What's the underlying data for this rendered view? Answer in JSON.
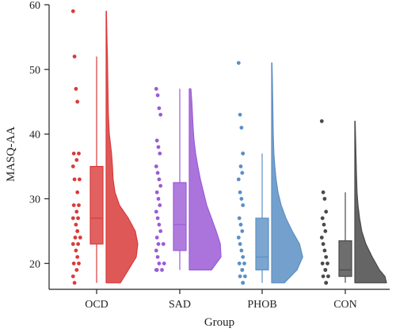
{
  "chart_data": {
    "type": "raincloud",
    "title": "",
    "xlabel": "Group",
    "ylabel": "MASQ-AA",
    "ylim": [
      16,
      60
    ],
    "yticks": [
      20,
      30,
      40,
      50,
      60
    ],
    "grid": false,
    "legend": "none",
    "categories": [
      "OCD",
      "SAD",
      "PHOB",
      "CON"
    ],
    "series": [
      {
        "name": "OCD",
        "color": "#d93a3a",
        "box": {
          "min": 17,
          "q1": 23,
          "median": 27,
          "q3": 35,
          "max": 52
        },
        "points": [
          59,
          52,
          47,
          45,
          37,
          37,
          36,
          35,
          33,
          33,
          31,
          29,
          29,
          28,
          27,
          27,
          26,
          25,
          25,
          24,
          24,
          23,
          23,
          22,
          21,
          20,
          20,
          19,
          18,
          17
        ],
        "density": [
          [
            17,
            0.45
          ],
          [
            19,
            0.7
          ],
          [
            21,
            0.95
          ],
          [
            23,
            1.0
          ],
          [
            25,
            0.92
          ],
          [
            27,
            0.7
          ],
          [
            29,
            0.42
          ],
          [
            31,
            0.28
          ],
          [
            33,
            0.22
          ],
          [
            35,
            0.2
          ],
          [
            37,
            0.17
          ],
          [
            40,
            0.1
          ],
          [
            43,
            0.07
          ],
          [
            46,
            0.06
          ],
          [
            49,
            0.05
          ],
          [
            52,
            0.04
          ],
          [
            55,
            0.025
          ],
          [
            59,
            0.01
          ]
        ]
      },
      {
        "name": "SAD",
        "color": "#9b5bd6",
        "box": {
          "min": 19,
          "q1": 22,
          "median": 26,
          "q3": 32.5,
          "max": 47
        },
        "points": [
          47,
          46,
          44,
          43,
          39,
          38,
          37,
          35,
          34,
          33,
          32,
          31,
          30,
          29,
          28,
          27,
          26,
          25,
          24,
          23,
          23,
          22,
          21,
          20,
          20,
          19,
          19,
          19
        ],
        "density": [
          [
            19,
            0.7
          ],
          [
            21,
            1.0
          ],
          [
            23,
            0.98
          ],
          [
            25,
            0.85
          ],
          [
            27,
            0.7
          ],
          [
            29,
            0.55
          ],
          [
            31,
            0.45
          ],
          [
            33,
            0.35
          ],
          [
            35,
            0.27
          ],
          [
            37,
            0.2
          ],
          [
            39,
            0.15
          ],
          [
            41,
            0.12
          ],
          [
            43,
            0.1
          ],
          [
            45,
            0.08
          ],
          [
            47,
            0.05
          ]
        ]
      },
      {
        "name": "PHOB",
        "color": "#5b8fc4",
        "box": {
          "min": 17,
          "q1": 19,
          "median": 21,
          "q3": 27,
          "max": 37
        },
        "points": [
          51,
          43,
          41,
          37,
          37,
          35,
          34,
          33,
          31,
          30,
          29,
          27,
          26,
          25,
          24,
          23,
          22,
          21,
          20,
          20,
          19,
          19,
          18,
          18,
          17,
          17
        ],
        "density": [
          [
            17,
            0.4
          ],
          [
            19,
            0.8
          ],
          [
            21,
            0.98
          ],
          [
            23,
            0.88
          ],
          [
            25,
            0.65
          ],
          [
            27,
            0.45
          ],
          [
            29,
            0.3
          ],
          [
            31,
            0.2
          ],
          [
            33,
            0.14
          ],
          [
            35,
            0.1
          ],
          [
            37,
            0.07
          ],
          [
            40,
            0.05
          ],
          [
            43,
            0.04
          ],
          [
            46,
            0.03
          ],
          [
            49,
            0.02
          ],
          [
            51,
            0.01
          ]
        ]
      },
      {
        "name": "CON",
        "color": "#4a4a4a",
        "box": {
          "min": 17,
          "q1": 18,
          "median": 19,
          "q3": 23.5,
          "max": 31
        },
        "points": [
          42,
          31,
          30,
          28,
          27,
          26,
          25,
          24,
          23,
          22,
          21,
          20,
          20,
          19,
          19,
          18,
          18,
          17,
          17
        ],
        "density": [
          [
            17,
            1.0
          ],
          [
            18,
            0.95
          ],
          [
            19,
            0.78
          ],
          [
            21,
            0.55
          ],
          [
            23,
            0.35
          ],
          [
            25,
            0.22
          ],
          [
            27,
            0.15
          ],
          [
            29,
            0.1
          ],
          [
            31,
            0.07
          ],
          [
            34,
            0.05
          ],
          [
            37,
            0.035
          ],
          [
            40,
            0.02
          ],
          [
            42,
            0.01
          ]
        ]
      }
    ]
  }
}
